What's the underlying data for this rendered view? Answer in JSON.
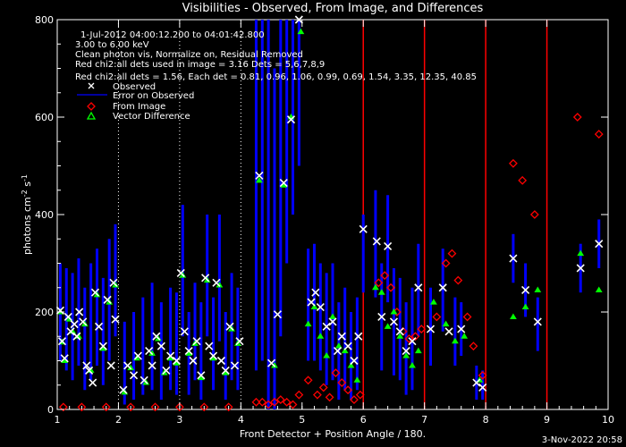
{
  "chart_data": {
    "type": "scatter",
    "title": "Visibilities - Observed, From Image, and Differences",
    "xlabel": "Front Detector + Position Angle / 180.",
    "ylabel": "photons cm",
    "ylabel_sup1": "-2",
    "ylabel_mid": " s",
    "ylabel_sup2": "-1",
    "xlim": [
      1,
      10
    ],
    "ylim": [
      0,
      800
    ],
    "x_ticks": [
      1,
      2,
      3,
      4,
      5,
      6,
      7,
      8,
      9,
      10
    ],
    "y_ticks": [
      0,
      200,
      400,
      600,
      800
    ],
    "annotations": [
      "1-Jul-2012 04:00:12.200 to 04:01:42.800",
      "3.00 to 6.00 keV",
      "Clean photon vis,    Normalize on, Residual Removed",
      "Red chi2:all dets used in image = 3.16  Dets = 5,6,7,8,9",
      "Red chi2:all dets = 1.56,  Each det = 0.81, 0.96, 1.06, 0.99, 0.69, 1.54, 3.35, 12.35, 40.85"
    ],
    "legend": [
      {
        "label": "Observed",
        "symbol": "x",
        "color": "#ffffff"
      },
      {
        "label": "Error on Observed",
        "symbol": "line",
        "color": "#0000ff"
      },
      {
        "label": "From Image",
        "symbol": "diamond",
        "color": "#ff0000"
      },
      {
        "label": "Vector Difference",
        "symbol": "triangle",
        "color": "#00ff00"
      }
    ],
    "legend_position": "top-left",
    "footer": "3-Nov-2022 20:58",
    "colors": {
      "observed": "#ffffff",
      "error": "#0000ff",
      "from_image": "#ff0000",
      "vector_difference": "#00ff00",
      "detector_line_white": "#ffffff",
      "detector_line_red": "#ff0000"
    },
    "white_dotted_lines": [
      2,
      3,
      4
    ],
    "red_solid_lines": [
      6,
      7,
      8,
      9
    ],
    "series": [
      {
        "name": "Observed",
        "points": [
          [
            1.05,
            203
          ],
          [
            1.08,
            140
          ],
          [
            1.12,
            105
          ],
          [
            1.18,
            190
          ],
          [
            1.22,
            160
          ],
          [
            1.28,
            175
          ],
          [
            1.32,
            150
          ],
          [
            1.36,
            200
          ],
          [
            1.42,
            180
          ],
          [
            1.48,
            90
          ],
          [
            1.52,
            80
          ],
          [
            1.58,
            55
          ],
          [
            1.62,
            240
          ],
          [
            1.68,
            170
          ],
          [
            1.75,
            130
          ],
          [
            1.82,
            225
          ],
          [
            1.88,
            90
          ],
          [
            1.92,
            260
          ],
          [
            1.95,
            185
          ],
          [
            2.08,
            40
          ],
          [
            2.15,
            90
          ],
          [
            2.25,
            70
          ],
          [
            2.32,
            110
          ],
          [
            2.42,
            60
          ],
          [
            2.5,
            120
          ],
          [
            2.55,
            90
          ],
          [
            2.62,
            150
          ],
          [
            2.7,
            130
          ],
          [
            2.78,
            80
          ],
          [
            2.85,
            110
          ],
          [
            2.95,
            100
          ],
          [
            3.02,
            280
          ],
          [
            3.08,
            160
          ],
          [
            3.15,
            120
          ],
          [
            3.22,
            100
          ],
          [
            3.28,
            140
          ],
          [
            3.35,
            70
          ],
          [
            3.42,
            270
          ],
          [
            3.48,
            130
          ],
          [
            3.55,
            110
          ],
          [
            3.6,
            260
          ],
          [
            3.68,
            100
          ],
          [
            3.75,
            80
          ],
          [
            3.82,
            170
          ],
          [
            3.9,
            90
          ],
          [
            3.98,
            140
          ],
          [
            4.3,
            480
          ],
          [
            4.5,
            95
          ],
          [
            4.6,
            195
          ],
          [
            4.7,
            465
          ],
          [
            4.82,
            595
          ],
          [
            4.95,
            800
          ],
          [
            5.15,
            220
          ],
          [
            5.22,
            240
          ],
          [
            5.3,
            210
          ],
          [
            5.4,
            170
          ],
          [
            5.5,
            180
          ],
          [
            5.58,
            120
          ],
          [
            5.65,
            150
          ],
          [
            5.75,
            130
          ],
          [
            5.85,
            100
          ],
          [
            5.92,
            150
          ],
          [
            6.0,
            370
          ],
          [
            6.22,
            345
          ],
          [
            6.3,
            190
          ],
          [
            6.4,
            335
          ],
          [
            6.5,
            180
          ],
          [
            6.6,
            160
          ],
          [
            6.7,
            120
          ],
          [
            6.8,
            140
          ],
          [
            6.9,
            250
          ],
          [
            7.1,
            165
          ],
          [
            7.3,
            250
          ],
          [
            7.4,
            160
          ],
          [
            7.6,
            165
          ],
          [
            7.85,
            55
          ],
          [
            7.95,
            45
          ],
          [
            8.45,
            310
          ],
          [
            8.65,
            245
          ],
          [
            8.85,
            180
          ],
          [
            9.55,
            290
          ],
          [
            9.85,
            340
          ]
        ]
      },
      {
        "name": "From Image",
        "points": [
          [
            1.1,
            5
          ],
          [
            1.4,
            5
          ],
          [
            1.8,
            5
          ],
          [
            2.2,
            5
          ],
          [
            2.6,
            5
          ],
          [
            3.0,
            5
          ],
          [
            3.4,
            5
          ],
          [
            3.8,
            5
          ],
          [
            4.25,
            15
          ],
          [
            4.35,
            15
          ],
          [
            4.45,
            10
          ],
          [
            4.55,
            15
          ],
          [
            4.65,
            20
          ],
          [
            4.75,
            15
          ],
          [
            4.85,
            10
          ],
          [
            4.95,
            30
          ],
          [
            5.1,
            60
          ],
          [
            5.25,
            30
          ],
          [
            5.35,
            45
          ],
          [
            5.45,
            25
          ],
          [
            5.55,
            75
          ],
          [
            5.65,
            55
          ],
          [
            5.75,
            40
          ],
          [
            5.85,
            20
          ],
          [
            5.95,
            30
          ],
          [
            6.25,
            260
          ],
          [
            6.35,
            275
          ],
          [
            6.45,
            250
          ],
          [
            6.55,
            200
          ],
          [
            6.65,
            160
          ],
          [
            6.75,
            145
          ],
          [
            6.85,
            150
          ],
          [
            6.95,
            165
          ],
          [
            7.2,
            190
          ],
          [
            7.35,
            300
          ],
          [
            7.45,
            320
          ],
          [
            7.55,
            265
          ],
          [
            7.7,
            190
          ],
          [
            7.8,
            130
          ],
          [
            7.95,
            70
          ],
          [
            8.45,
            505
          ],
          [
            8.6,
            470
          ],
          [
            8.8,
            400
          ],
          [
            9.5,
            600
          ],
          [
            9.85,
            565
          ]
        ]
      },
      {
        "name": "Vector Difference",
        "points": [
          [
            1.05,
            200
          ],
          [
            1.08,
            138
          ],
          [
            1.12,
            100
          ],
          [
            1.2,
            185
          ],
          [
            1.25,
            160
          ],
          [
            1.35,
            150
          ],
          [
            1.45,
            175
          ],
          [
            1.55,
            80
          ],
          [
            1.65,
            235
          ],
          [
            1.75,
            125
          ],
          [
            1.85,
            220
          ],
          [
            1.95,
            255
          ],
          [
            2.1,
            35
          ],
          [
            2.2,
            85
          ],
          [
            2.3,
            105
          ],
          [
            2.45,
            55
          ],
          [
            2.55,
            115
          ],
          [
            2.65,
            145
          ],
          [
            2.75,
            75
          ],
          [
            2.85,
            105
          ],
          [
            2.95,
            95
          ],
          [
            3.05,
            275
          ],
          [
            3.15,
            115
          ],
          [
            3.25,
            135
          ],
          [
            3.35,
            65
          ],
          [
            3.45,
            265
          ],
          [
            3.55,
            105
          ],
          [
            3.65,
            255
          ],
          [
            3.75,
            75
          ],
          [
            3.85,
            165
          ],
          [
            3.95,
            135
          ],
          [
            4.3,
            470
          ],
          [
            4.55,
            90
          ],
          [
            4.7,
            460
          ],
          [
            4.82,
            600
          ],
          [
            4.98,
            775
          ],
          [
            5.1,
            175
          ],
          [
            5.2,
            210
          ],
          [
            5.3,
            150
          ],
          [
            5.4,
            110
          ],
          [
            5.5,
            190
          ],
          [
            5.6,
            130
          ],
          [
            5.7,
            120
          ],
          [
            5.8,
            90
          ],
          [
            5.9,
            60
          ],
          [
            6.2,
            250
          ],
          [
            6.3,
            240
          ],
          [
            6.4,
            170
          ],
          [
            6.5,
            200
          ],
          [
            6.6,
            150
          ],
          [
            6.7,
            110
          ],
          [
            6.8,
            90
          ],
          [
            6.9,
            120
          ],
          [
            7.15,
            220
          ],
          [
            7.35,
            175
          ],
          [
            7.5,
            140
          ],
          [
            7.65,
            150
          ],
          [
            7.9,
            60
          ],
          [
            8.45,
            190
          ],
          [
            8.65,
            210
          ],
          [
            8.85,
            245
          ],
          [
            9.55,
            320
          ],
          [
            9.85,
            245
          ]
        ]
      },
      {
        "name": "Error on Observed",
        "bars": [
          [
            1.05,
            100,
            300
          ],
          [
            1.15,
            80,
            290
          ],
          [
            1.25,
            60,
            280
          ],
          [
            1.35,
            90,
            310
          ],
          [
            1.45,
            40,
            250
          ],
          [
            1.55,
            60,
            300
          ],
          [
            1.65,
            90,
            330
          ],
          [
            1.75,
            50,
            270
          ],
          [
            1.85,
            100,
            350
          ],
          [
            1.95,
            150,
            380
          ],
          [
            2.1,
            10,
            180
          ],
          [
            2.25,
            20,
            200
          ],
          [
            2.4,
            30,
            230
          ],
          [
            2.55,
            40,
            260
          ],
          [
            2.7,
            20,
            220
          ],
          [
            2.85,
            40,
            250
          ],
          [
            2.95,
            30,
            240
          ],
          [
            3.05,
            150,
            420
          ],
          [
            3.15,
            30,
            200
          ],
          [
            3.25,
            60,
            260
          ],
          [
            3.35,
            20,
            220
          ],
          [
            3.45,
            150,
            400
          ],
          [
            3.55,
            40,
            230
          ],
          [
            3.65,
            140,
            400
          ],
          [
            3.75,
            20,
            200
          ],
          [
            3.85,
            60,
            280
          ],
          [
            3.95,
            40,
            250
          ],
          [
            4.25,
            80,
            800
          ],
          [
            4.35,
            100,
            800
          ],
          [
            4.45,
            0,
            800
          ],
          [
            4.55,
            0,
            700
          ],
          [
            4.65,
            150,
            800
          ],
          [
            4.75,
            300,
            800
          ],
          [
            4.85,
            400,
            800
          ],
          [
            4.95,
            500,
            800
          ],
          [
            5.1,
            100,
            330
          ],
          [
            5.2,
            100,
            340
          ],
          [
            5.3,
            80,
            300
          ],
          [
            5.4,
            50,
            280
          ],
          [
            5.5,
            60,
            300
          ],
          [
            5.6,
            20,
            220
          ],
          [
            5.7,
            40,
            250
          ],
          [
            5.8,
            20,
            200
          ],
          [
            5.9,
            40,
            230
          ],
          [
            6.0,
            240,
            400
          ],
          [
            6.2,
            230,
            450
          ],
          [
            6.3,
            80,
            300
          ],
          [
            6.4,
            220,
            440
          ],
          [
            6.5,
            70,
            290
          ],
          [
            6.6,
            60,
            270
          ],
          [
            6.7,
            30,
            220
          ],
          [
            6.8,
            40,
            250
          ],
          [
            6.9,
            150,
            340
          ],
          [
            7.1,
            90,
            250
          ],
          [
            7.3,
            160,
            330
          ],
          [
            7.5,
            90,
            230
          ],
          [
            7.6,
            110,
            220
          ],
          [
            7.85,
            20,
            90
          ],
          [
            7.95,
            20,
            80
          ],
          [
            8.45,
            260,
            360
          ],
          [
            8.65,
            190,
            300
          ],
          [
            8.85,
            120,
            230
          ],
          [
            9.55,
            240,
            340
          ],
          [
            9.85,
            290,
            390
          ]
        ]
      }
    ]
  }
}
